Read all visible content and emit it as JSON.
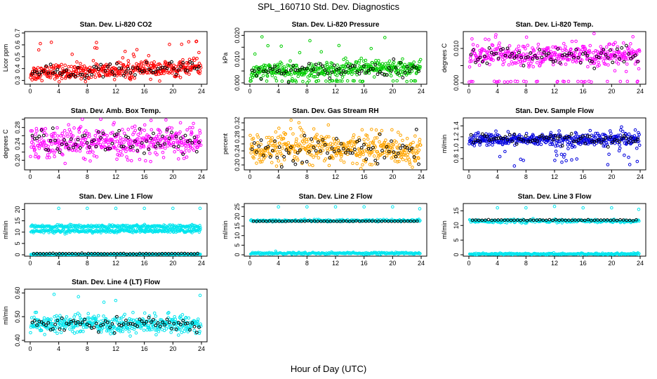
{
  "page": {
    "title": "SPL_160710  Std. Dev. Diagnostics",
    "xlabel": "Hour of Day (UTC)"
  },
  "chart_data": [
    {
      "type": "scatter",
      "title": "Stan. Dev. Li-820 CO2",
      "ylabel": "Licor ppm",
      "xlim": [
        0,
        24
      ],
      "ylim": [
        0.28,
        0.7
      ],
      "xticks": [
        0,
        4,
        8,
        12,
        16,
        20,
        24
      ],
      "yticks": [
        0.3,
        0.4,
        0.5,
        0.6,
        0.7
      ],
      "yticklabels": [
        "0.3",
        "0.4",
        "0.5",
        "0.6",
        "0.7"
      ],
      "color": "#ff0000",
      "base": 0.36,
      "spread": 0.035,
      "trend": 0.002,
      "out_prob": 0.03,
      "out_lo": 0.5,
      "out_hi": 0.7,
      "low_prob": 0.0,
      "low_val": 0.3
    },
    {
      "type": "scatter",
      "title": "Stan. Dev. Li-820 Pressure",
      "ylabel": "kPa",
      "xlim": [
        0,
        24
      ],
      "ylim": [
        0,
        0.021
      ],
      "xticks": [
        0,
        4,
        8,
        12,
        16,
        20,
        24
      ],
      "yticks": [
        0,
        0.005,
        0.01,
        0.015,
        0.02
      ],
      "yticklabels": [
        "0.000",
        "",
        "0.010",
        "",
        "0.020"
      ],
      "color": "#00cc00",
      "base": 0.0045,
      "spread": 0.0018,
      "trend": 8e-05,
      "out_prob": 0.02,
      "out_lo": 0.012,
      "out_hi": 0.02,
      "low_prob": 0.08,
      "low_val": 0.0005
    },
    {
      "type": "scatter",
      "title": "Stan. Dev. Li-820 Temp.",
      "ylabel": "degrees C",
      "xlim": [
        0,
        24
      ],
      "ylim": [
        0,
        0.0145
      ],
      "xticks": [
        0,
        4,
        8,
        12,
        16,
        20,
        24
      ],
      "yticks": [
        0,
        0.005,
        0.01
      ],
      "yticklabels": [
        "0.000",
        "",
        "0.010"
      ],
      "color": "#ff00ff",
      "base": 0.008,
      "spread": 0.0015,
      "trend": 0.0,
      "out_prob": 0.03,
      "out_lo": 0.011,
      "out_hi": 0.0145,
      "low_prob": 0.06,
      "low_val": 0.0002
    },
    {
      "type": "scatter",
      "title": "Stan. Dev. Amb. Box Temp.",
      "ylabel": "degrees C",
      "xlim": [
        0,
        24
      ],
      "ylim": [
        0.18,
        0.3
      ],
      "xticks": [
        0,
        4,
        8,
        12,
        16,
        20,
        24
      ],
      "yticks": [
        0.2,
        0.22,
        0.24,
        0.26,
        0.28,
        0.3
      ],
      "yticklabels": [
        "0.20",
        "",
        "0.24",
        "",
        "0.28",
        ""
      ],
      "color": "#ff00ff",
      "base": 0.245,
      "spread": 0.018,
      "trend": 0.0,
      "out_prob": 0.01,
      "out_lo": 0.18,
      "out_hi": 0.3,
      "low_prob": 0.0,
      "low_val": 0.19
    },
    {
      "type": "scatter",
      "title": "Stan. Dev. Gas Stream RH",
      "ylabel": "percent",
      "xlim": [
        0,
        24
      ],
      "ylim": [
        0.19,
        0.33
      ],
      "xticks": [
        0,
        4,
        8,
        12,
        16,
        20,
        24
      ],
      "yticks": [
        0.2,
        0.22,
        0.24,
        0.26,
        0.28,
        0.3,
        0.32
      ],
      "yticklabels": [
        "0.20",
        "",
        "0.24",
        "",
        "0.28",
        "",
        "0.32"
      ],
      "color": "#ffa500",
      "base": 0.245,
      "spread": 0.022,
      "trend": 0.0,
      "out_prob": 0.02,
      "out_lo": 0.29,
      "out_hi": 0.33,
      "low_prob": 0.0,
      "low_val": 0.2
    },
    {
      "type": "scatter",
      "title": "Stan. Dev. Sample Flow",
      "ylabel": "ml/min",
      "xlim": [
        0,
        24
      ],
      "ylim": [
        0.62,
        1.52
      ],
      "xticks": [
        0,
        4,
        8,
        12,
        16,
        20,
        24
      ],
      "yticks": [
        0.8,
        1.0,
        1.2,
        1.4
      ],
      "yticklabels": [
        "0.8",
        "1.0",
        "1.2",
        "1.4"
      ],
      "color": "#0000dd",
      "base": 1.15,
      "spread": 0.06,
      "trend": 0.0,
      "out_prob": 0.05,
      "out_lo": 0.65,
      "out_hi": 0.95,
      "low_prob": 0.0,
      "low_val": 0.7
    },
    {
      "type": "scatter",
      "title": "Stan. Dev. Line 1 Flow",
      "ylabel": "ml/min",
      "xlim": [
        0,
        24
      ],
      "ylim": [
        0,
        22
      ],
      "xticks": [
        0,
        4,
        8,
        12,
        16,
        20,
        24
      ],
      "yticks": [
        0,
        5,
        10,
        15,
        20
      ],
      "yticklabels": [
        "0",
        "5",
        "10",
        "15",
        "20"
      ],
      "color": "#00e5ee",
      "bands": [
        {
          "y": 0.2,
          "s": 0.1
        },
        {
          "y": 10.5,
          "s": 0.4
        },
        {
          "y": 12.5,
          "s": 0.4
        }
      ],
      "black_band": 0.5,
      "outliers": [
        [
          4,
          20.5
        ],
        [
          8,
          20.5
        ],
        [
          12,
          20.5
        ],
        [
          16,
          20.5
        ],
        [
          20,
          20.5
        ],
        [
          23.8,
          20.5
        ]
      ]
    },
    {
      "type": "scatter",
      "title": "Stan. Dev. Line 2 Flow",
      "ylabel": "ml/min",
      "xlim": [
        0,
        24
      ],
      "ylim": [
        0,
        26
      ],
      "xticks": [
        0,
        4,
        8,
        12,
        16,
        20,
        24
      ],
      "yticks": [
        0,
        5,
        10,
        15,
        20,
        25
      ],
      "yticklabels": [
        "0",
        "5",
        "10",
        "15",
        "20",
        "25"
      ],
      "color": "#00e5ee",
      "bands": [
        {
          "y": 0.8,
          "s": 0.3
        },
        {
          "y": 17.8,
          "s": 0.3
        }
      ],
      "black_band": 17.5,
      "outliers": [
        [
          4,
          25
        ],
        [
          8,
          25
        ],
        [
          12,
          25
        ],
        [
          16,
          25
        ],
        [
          20,
          25
        ],
        [
          23.8,
          24
        ]
      ]
    },
    {
      "type": "scatter",
      "title": "Stan. Dev. Line 3 Flow",
      "ylabel": "ml/min",
      "xlim": [
        0,
        24
      ],
      "ylim": [
        0,
        17
      ],
      "xticks": [
        0,
        4,
        8,
        12,
        16,
        20,
        24
      ],
      "yticks": [
        0,
        5,
        10,
        15
      ],
      "yticklabels": [
        "0",
        "5",
        "10",
        "15"
      ],
      "color": "#00e5ee",
      "bands": [
        {
          "y": 0.3,
          "s": 0.15
        },
        {
          "y": 11.5,
          "s": 0.3
        }
      ],
      "black_band": 11.8,
      "outliers": [
        [
          4,
          16
        ],
        [
          8,
          16
        ],
        [
          12,
          16.5
        ],
        [
          16,
          16
        ],
        [
          20,
          16
        ],
        [
          23.8,
          15.5
        ]
      ]
    },
    {
      "type": "scatter",
      "title": "Stan. Dev. Line 4 (LT) Flow",
      "ylabel": "ml/min",
      "xlim": [
        0,
        24
      ],
      "ylim": [
        0.4,
        0.61
      ],
      "xticks": [
        0,
        4,
        8,
        12,
        16,
        20,
        24
      ],
      "yticks": [
        0.4,
        0.5,
        0.6
      ],
      "yticklabels": [
        "0.40",
        "0.50",
        "0.60"
      ],
      "color": "#00e5ee",
      "base": 0.468,
      "spread": 0.018,
      "trend": 0.0,
      "out_prob": 0.01,
      "out_lo": 0.56,
      "out_hi": 0.6,
      "low_prob": 0.0,
      "low_val": 0.42
    }
  ]
}
